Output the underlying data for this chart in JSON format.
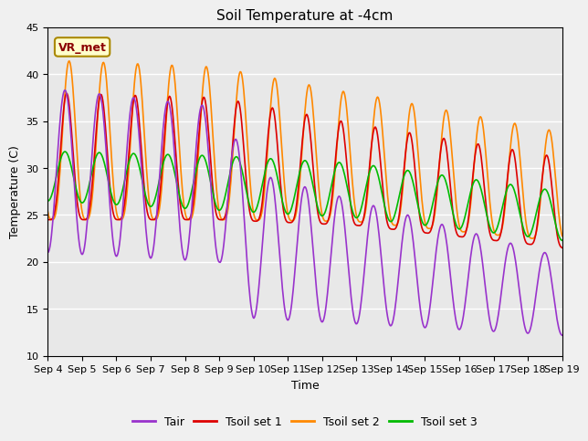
{
  "title": "Soil Temperature at -4cm",
  "xlabel": "Time",
  "ylabel": "Temperature (C)",
  "ylim": [
    10,
    45
  ],
  "yticks": [
    10,
    15,
    20,
    25,
    30,
    35,
    40,
    45
  ],
  "xlim_days": [
    0,
    15
  ],
  "x_tick_labels": [
    "Sep 4",
    "Sep 5",
    "Sep 6",
    "Sep 7",
    "Sep 8",
    "Sep 9",
    "Sep 10",
    "Sep 11",
    "Sep 12",
    "Sep 13",
    "Sep 14",
    "Sep 15",
    "Sep 16",
    "Sep 17",
    "Sep 18",
    "Sep 19"
  ],
  "color_tair": "#9933CC",
  "color_tsoil1": "#DD0000",
  "color_tsoil2": "#FF8800",
  "color_tsoil3": "#00BB00",
  "legend_label_tair": "Tair",
  "legend_label_tsoil1": "Tsoil set 1",
  "legend_label_tsoil2": "Tsoil set 2",
  "legend_label_tsoil3": "Tsoil set 3",
  "annotation_text": "VR_met",
  "bg_inner": "#e8e8e8",
  "bg_outer": "#f0f0f0",
  "title_fontsize": 11,
  "axis_label_fontsize": 9,
  "tick_fontsize": 8,
  "legend_fontsize": 9,
  "grid_color": "#ffffff",
  "line_width": 1.2
}
